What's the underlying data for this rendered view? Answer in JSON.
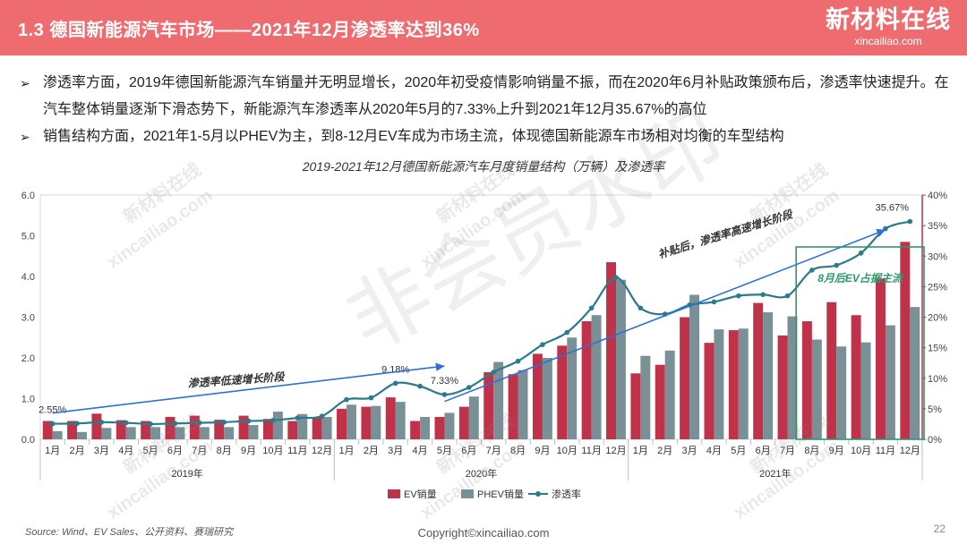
{
  "header": {
    "title": "1.3 德国新能源汽车市场——2021年12月渗透率达到36%",
    "logo_main": "新材料在线",
    "logo_sub": "xincailiao.com"
  },
  "bullets": [
    "渗透率方面，2019年德国新能源汽车销量并无明显增长，2020年初受疫情影响销量不振，而在2020年6月补贴政策颁布后，渗透率快速提升。在汽车整体销量逐渐下滑态势下，新能源汽车渗透率从2020年5月的7.33%上升到2021年12月35.67%的高位",
    "销售结构方面，2021年1-5月以PHEV为主，到8-12月EV车成为市场主流，体现德国新能源车市场相对均衡的车型结构"
  ],
  "watermark": {
    "big": "非会员水印",
    "small": [
      "新材料在线",
      "xincailiao.com"
    ]
  },
  "chart_data": {
    "type": "bar",
    "title": "2019-2021年12月德国新能源汽车月度销量结构（万辆）及渗透率",
    "categories": [
      "1月",
      "2月",
      "3月",
      "4月",
      "5月",
      "6月",
      "7月",
      "8月",
      "9月",
      "10月",
      "11月",
      "12月",
      "1月",
      "2月",
      "3月",
      "4月",
      "5月",
      "6月",
      "7月",
      "8月",
      "9月",
      "10月",
      "11月",
      "12月",
      "1月",
      "2月",
      "3月",
      "4月",
      "5月",
      "6月",
      "7月",
      "8月",
      "9月",
      "10月",
      "11月",
      "12月"
    ],
    "year_groups": [
      {
        "label": "2019年",
        "start": 0,
        "count": 12
      },
      {
        "label": "2020年",
        "start": 12,
        "count": 12
      },
      {
        "label": "2021年",
        "start": 24,
        "count": 12
      }
    ],
    "series": [
      {
        "name": "EV销量",
        "type": "bar",
        "color": "#c0314a",
        "values": [
          0.45,
          0.45,
          0.63,
          0.47,
          0.45,
          0.55,
          0.58,
          0.48,
          0.58,
          0.5,
          0.45,
          0.55,
          0.75,
          0.8,
          1.03,
          0.45,
          0.55,
          0.8,
          1.65,
          1.6,
          2.1,
          2.3,
          2.9,
          4.35,
          1.62,
          1.83,
          3.0,
          2.37,
          2.68,
          3.35,
          2.55,
          2.9,
          3.37,
          3.05,
          3.95,
          4.85
        ]
      },
      {
        "name": "PHEV销量",
        "type": "bar",
        "color": "#7a9097",
        "values": [
          0.2,
          0.18,
          0.28,
          0.3,
          0.3,
          0.3,
          0.3,
          0.3,
          0.35,
          0.68,
          0.62,
          0.55,
          0.85,
          0.82,
          0.92,
          0.55,
          0.65,
          1.05,
          1.9,
          1.7,
          2.0,
          2.5,
          3.05,
          3.92,
          2.05,
          2.18,
          3.55,
          2.7,
          2.72,
          3.12,
          3.02,
          2.45,
          2.28,
          2.38,
          2.8,
          3.25
        ]
      },
      {
        "name": "渗透率",
        "type": "line",
        "axis": "right",
        "color": "#2a7b8c",
        "values": [
          2.55,
          2.6,
          2.8,
          2.7,
          2.5,
          2.6,
          2.7,
          2.8,
          3.0,
          3.1,
          3.5,
          3.8,
          6.5,
          6.8,
          9.18,
          8.7,
          7.33,
          8.5,
          11.0,
          12.8,
          15.5,
          17.5,
          21.5,
          26.5,
          21.5,
          20.5,
          22.0,
          22.5,
          23.5,
          23.7,
          23.5,
          27.7,
          28.5,
          30.5,
          34.5,
          35.67
        ]
      }
    ],
    "y_left": {
      "min": 0,
      "max": 6.0,
      "ticks": [
        "0.0",
        "1.0",
        "2.0",
        "3.0",
        "4.0",
        "5.0",
        "6.0"
      ]
    },
    "y_right": {
      "min": 0,
      "max": 40,
      "ticks": [
        "0%",
        "5%",
        "10%",
        "15%",
        "20%",
        "25%",
        "30%",
        "35%",
        "40%"
      ]
    },
    "data_labels": [
      {
        "index": 0,
        "text": "2.55%"
      },
      {
        "index": 14,
        "text": "9.18%"
      },
      {
        "index": 16,
        "text": "7.33%"
      },
      {
        "index": 35,
        "text": "35.67%"
      }
    ],
    "annotations": {
      "low_phase": "渗透率低速增长阶段",
      "high_phase": "补贴后，渗透率高速增长阶段",
      "ev_dominant": "8月后EV占据主流"
    },
    "legend": {
      "position": "bottom"
    }
  },
  "footer": {
    "source": "Source:  Wind、EV Sales、公开资料、赛瑞研究",
    "copyright": "Copyright©xincailiao.com",
    "page": "22"
  }
}
